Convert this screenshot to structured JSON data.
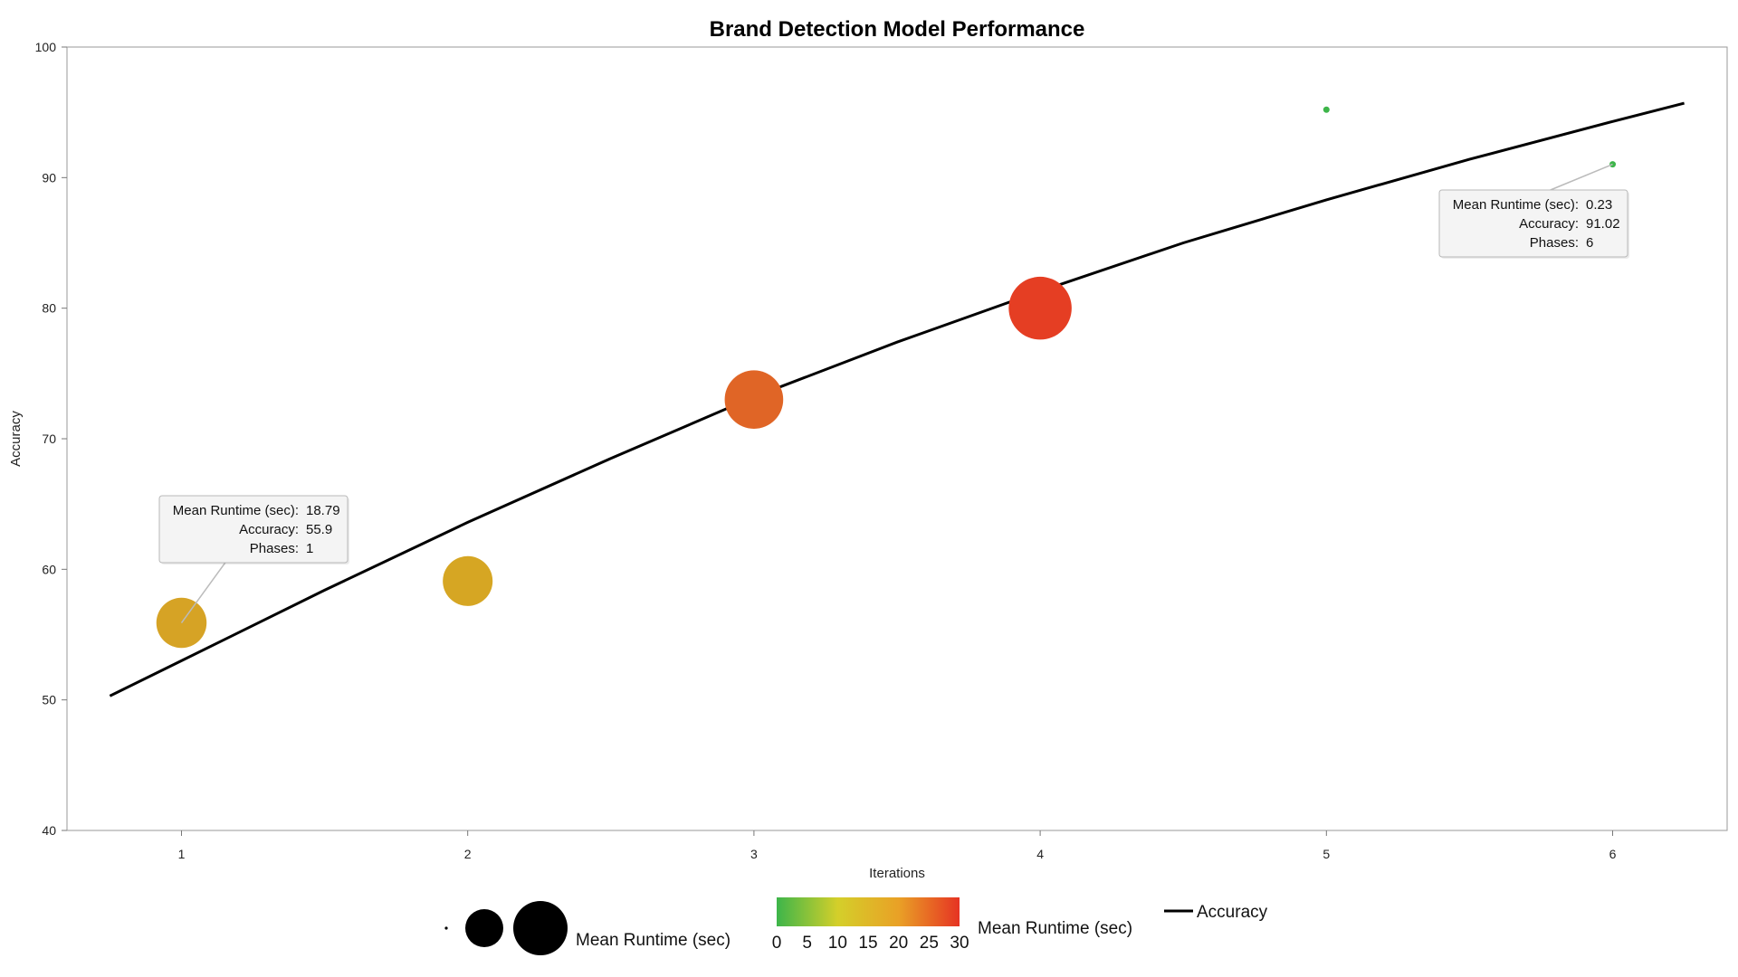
{
  "chart_data": {
    "type": "scatter",
    "title": "Brand Detection Model Performance",
    "xlabel": "Iterations",
    "ylabel": "Accuracy",
    "xlim": [
      0.6,
      6.4
    ],
    "ylim": [
      40,
      100
    ],
    "x_ticks": [
      1,
      2,
      3,
      4,
      5,
      6
    ],
    "y_ticks": [
      40,
      50,
      60,
      70,
      80,
      90,
      100
    ],
    "grid": false,
    "points": [
      {
        "x": 1,
        "y": 55.9,
        "runtime": 18.79,
        "color": "#D6A325"
      },
      {
        "x": 2,
        "y": 59.1,
        "runtime": 18.5,
        "color": "#D6A623"
      },
      {
        "x": 3,
        "y": 73.0,
        "runtime": 25.5,
        "color": "#E06526"
      },
      {
        "x": 4,
        "y": 80.0,
        "runtime": 29.5,
        "color": "#E53E23"
      },
      {
        "x": 5,
        "y": 95.2,
        "runtime": 0.2,
        "color": "#3DB54A"
      },
      {
        "x": 6,
        "y": 91.02,
        "runtime": 0.23,
        "color": "#3DB54A"
      }
    ],
    "fit_line": {
      "name": "Accuracy",
      "color": "#000000",
      "x": [
        0.75,
        1.0,
        1.5,
        2.0,
        2.5,
        3.0,
        3.5,
        4.0,
        4.5,
        5.0,
        5.5,
        6.0,
        6.25
      ],
      "y": [
        50.3,
        53.0,
        58.4,
        63.6,
        68.5,
        73.2,
        77.4,
        81.3,
        85.0,
        88.3,
        91.4,
        94.3,
        95.7
      ]
    },
    "tooltips": [
      {
        "point_index": 0,
        "lines": [
          {
            "label": "Mean Runtime (sec):",
            "value": "18.79"
          },
          {
            "label": "Accuracy:",
            "value": "55.9"
          },
          {
            "label": "Phases:",
            "value": "1"
          }
        ]
      },
      {
        "point_index": 5,
        "lines": [
          {
            "label": "Mean Runtime (sec):",
            "value": "0.23"
          },
          {
            "label": "Accuracy:",
            "value": "91.02"
          },
          {
            "label": "Phases:",
            "value": "6"
          }
        ]
      }
    ],
    "legend": {
      "size_label": "Mean Runtime (sec)",
      "color_label": "Mean Runtime (sec)",
      "line_label": "Accuracy",
      "color_scale": {
        "min": 0,
        "max": 30,
        "ticks": [
          0,
          5,
          10,
          15,
          20,
          25,
          30
        ],
        "stops": [
          "#3DB54A",
          "#D4CF2A",
          "#E9A126",
          "#E63323"
        ]
      }
    }
  }
}
